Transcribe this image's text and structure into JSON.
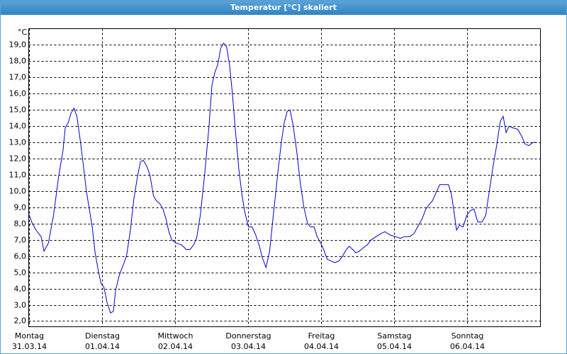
{
  "chart_data": {
    "type": "line",
    "title": "Temperatur [°C] skaliert",
    "y_unit": "°C",
    "xlim": [
      0,
      7
    ],
    "xticks": [
      0,
      1,
      2,
      3,
      4,
      5,
      6
    ],
    "x_tick_days": [
      "Montag",
      "Dienstag",
      "Mittwoch",
      "Donnerstag",
      "Freitag",
      "Samstag",
      "Sonntag"
    ],
    "x_tick_dates": [
      "31.03.14",
      "01.04.14",
      "02.04.14",
      "03.04.14",
      "04.04.14",
      "05.04.14",
      "06.04.14"
    ],
    "ylim": [
      1.65,
      20
    ],
    "yticks": [
      {
        "value": 2,
        "label": "2,0"
      },
      {
        "value": 3,
        "label": "3,0"
      },
      {
        "value": 4,
        "label": "4,0"
      },
      {
        "value": 5,
        "label": "5,0"
      },
      {
        "value": 6,
        "label": "6,0"
      },
      {
        "value": 7,
        "label": "7,0"
      },
      {
        "value": 8,
        "label": "8,0"
      },
      {
        "value": 9,
        "label": "9,0"
      },
      {
        "value": 10,
        "label": "10,0"
      },
      {
        "value": 11,
        "label": "11,0"
      },
      {
        "value": 12,
        "label": "12,0"
      },
      {
        "value": 13,
        "label": "13,0"
      },
      {
        "value": 14,
        "label": "14,0"
      },
      {
        "value": 15,
        "label": "15,0"
      },
      {
        "value": 16,
        "label": "16,0"
      },
      {
        "value": 17,
        "label": "17,0"
      },
      {
        "value": 18,
        "label": "18,0"
      },
      {
        "value": 19,
        "label": "19,0"
      }
    ],
    "grid": true,
    "series": [
      {
        "color": "#0000c8",
        "x": [
          0,
          0.05,
          0.1,
          0.17,
          0.21,
          0.27,
          0.34,
          0.41,
          0.47,
          0.5,
          0.54,
          0.58,
          0.62,
          0.66,
          0.71,
          0.75,
          0.79,
          0.83,
          0.87,
          0.91,
          0.95,
          0.99,
          1.03,
          1.07,
          1.12,
          1.16,
          1.19,
          1.24,
          1.29,
          1.34,
          1.39,
          1.44,
          1.49,
          1.53,
          1.57,
          1.62,
          1.66,
          1.71,
          1.75,
          1.8,
          1.84,
          1.88,
          1.92,
          1.96,
          2.02,
          2.09,
          2.16,
          2.21,
          2.26,
          2.3,
          2.35,
          2.41,
          2.47,
          2.51,
          2.55,
          2.59,
          2.63,
          2.67,
          2.71,
          2.75,
          2.79,
          2.83,
          2.88,
          2.92,
          2.96,
          3.01,
          3.06,
          3.11,
          3.16,
          3.2,
          3.25,
          3.3,
          3.35,
          3.41,
          3.46,
          3.5,
          3.54,
          3.58,
          3.62,
          3.67,
          3.72,
          3.77,
          3.82,
          3.86,
          3.91,
          3.95,
          4,
          4.04,
          4.09,
          4.14,
          4.19,
          4.25,
          4.3,
          4.35,
          4.39,
          4.44,
          4.48,
          4.53,
          4.58,
          4.64,
          4.69,
          4.76,
          4.83,
          4.88,
          4.95,
          5.02,
          5.09,
          5.15,
          5.22,
          5.28,
          5.34,
          5.39,
          5.44,
          5.49,
          5.53,
          5.58,
          5.63,
          5.7,
          5.75,
          5.79,
          5.83,
          5.86,
          5.9,
          5.95,
          6,
          6.05,
          6.1,
          6.15,
          6.21,
          6.26,
          6.31,
          6.36,
          6.41,
          6.46,
          6.5,
          6.54,
          6.58,
          6.63,
          6.7,
          6.75,
          6.8,
          6.85,
          6.91,
          6.95
        ],
        "values": [
          8.6,
          8.0,
          7.6,
          7.2,
          6.3,
          6.8,
          8.5,
          10.9,
          12.5,
          13.9,
          14.2,
          14.8,
          15.1,
          14.6,
          13.0,
          11.5,
          10.0,
          8.9,
          7.8,
          6.2,
          5.2,
          4.3,
          4.1,
          3.2,
          2.5,
          2.6,
          3.9,
          4.8,
          5.4,
          6.0,
          7.5,
          9.5,
          10.9,
          11.8,
          11.9,
          11.5,
          11.0,
          9.7,
          9.4,
          9.2,
          8.9,
          8.3,
          7.5,
          7.0,
          6.8,
          6.7,
          6.4,
          6.4,
          6.7,
          7.1,
          8.5,
          11.0,
          14.0,
          16.5,
          17.3,
          17.8,
          18.8,
          19.1,
          18.9,
          17.8,
          16.0,
          13.8,
          11.3,
          9.8,
          8.7,
          7.8,
          7.8,
          7.3,
          6.6,
          5.9,
          5.3,
          6.3,
          8.5,
          11.0,
          13.0,
          14.2,
          14.9,
          15.0,
          14.1,
          12.5,
          10.5,
          9.0,
          8.0,
          7.8,
          7.8,
          7.2,
          6.8,
          6.4,
          5.8,
          5.7,
          5.6,
          5.7,
          6.0,
          6.4,
          6.6,
          6.4,
          6.2,
          6.3,
          6.5,
          6.7,
          7.0,
          7.2,
          7.4,
          7.5,
          7.3,
          7.2,
          7.1,
          7.2,
          7.2,
          7.4,
          7.9,
          8.3,
          8.9,
          9.2,
          9.4,
          9.9,
          10.4,
          10.4,
          10.4,
          9.8,
          8.6,
          7.6,
          7.9,
          7.8,
          8.5,
          8.8,
          8.9,
          8.1,
          8.1,
          8.5,
          10.0,
          11.5,
          12.8,
          14.3,
          14.6,
          13.6,
          14.0,
          13.9,
          13.8,
          13.4,
          12.9,
          12.8,
          13.0,
          13.0
        ]
      }
    ]
  }
}
